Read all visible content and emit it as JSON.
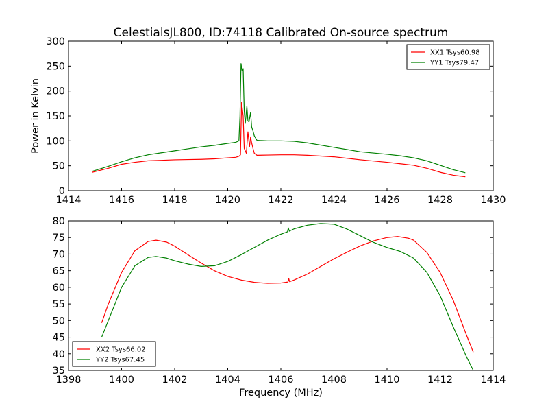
{
  "figure": {
    "title": "CelestialsJL800, ID:74118 Calibrated On-source spectrum",
    "xlabel": "Frequency (MHz)"
  },
  "chart_data": [
    {
      "type": "line",
      "title": "CelestialsJL800, ID:74118 Calibrated On-source spectrum",
      "xlabel": "",
      "ylabel": "Power in Kelvin",
      "xlim": [
        1414,
        1430
      ],
      "ylim": [
        0,
        300
      ],
      "xticks": [
        1414,
        1416,
        1418,
        1420,
        1422,
        1424,
        1426,
        1428,
        1430
      ],
      "yticks": [
        0,
        50,
        100,
        150,
        200,
        250,
        300
      ],
      "grid": false,
      "legend_position": "top-right",
      "series": [
        {
          "name": "XX1 Tsys60.98",
          "color": "#ff0000",
          "x": [
            1414.9,
            1415.5,
            1416.0,
            1416.5,
            1417.0,
            1417.5,
            1418.0,
            1418.5,
            1419.0,
            1419.5,
            1420.0,
            1420.3,
            1420.42,
            1420.48,
            1420.52,
            1420.58,
            1420.62,
            1420.66,
            1420.7,
            1420.76,
            1420.82,
            1420.86,
            1420.9,
            1420.95,
            1421.0,
            1421.1,
            1421.5,
            1422.0,
            1422.5,
            1423.0,
            1424.0,
            1425.0,
            1426.0,
            1426.5,
            1427.0,
            1427.5,
            1428.0,
            1428.5,
            1428.95
          ],
          "y": [
            37,
            45,
            53,
            57,
            60,
            61,
            62,
            62.5,
            63,
            64,
            66,
            67,
            69,
            72,
            178,
            150,
            85,
            80,
            75,
            118,
            88,
            108,
            96,
            85,
            75,
            71,
            71.5,
            72,
            72,
            71,
            68,
            62,
            57,
            54,
            51,
            45,
            37,
            31,
            28
          ]
        },
        {
          "name": "YY1 Tsys79.47",
          "color": "#008000",
          "x": [
            1414.9,
            1415.5,
            1416.0,
            1416.5,
            1417.0,
            1417.5,
            1418.0,
            1418.5,
            1419.0,
            1419.5,
            1420.0,
            1420.3,
            1420.42,
            1420.46,
            1420.5,
            1420.54,
            1420.58,
            1420.62,
            1420.66,
            1420.72,
            1420.76,
            1420.8,
            1420.86,
            1420.9,
            1420.95,
            1421.0,
            1421.1,
            1421.5,
            1422.0,
            1422.5,
            1423.0,
            1424.0,
            1425.0,
            1426.0,
            1426.5,
            1427.0,
            1427.5,
            1428.0,
            1428.5,
            1428.95
          ],
          "y": [
            39,
            49,
            58,
            66,
            72,
            76,
            80,
            84,
            88,
            91,
            95,
            97,
            100,
            150,
            255,
            240,
            245,
            160,
            135,
            170,
            140,
            138,
            157,
            128,
            120,
            110,
            101,
            100,
            100,
            99,
            96,
            87,
            78,
            73,
            70,
            66,
            60,
            51,
            42,
            36
          ]
        }
      ]
    },
    {
      "type": "line",
      "title": "",
      "xlabel": "Frequency (MHz)",
      "ylabel": "",
      "xlim": [
        1398,
        1414
      ],
      "ylim": [
        35,
        80
      ],
      "xticks": [
        1398,
        1400,
        1402,
        1404,
        1406,
        1408,
        1410,
        1412,
        1414
      ],
      "yticks": [
        35,
        40,
        45,
        50,
        55,
        60,
        65,
        70,
        75,
        80
      ],
      "grid": false,
      "legend_position": "bottom-left",
      "series": [
        {
          "name": "XX2 Tsys66.02",
          "color": "#ff0000",
          "x": [
            1399.25,
            1399.5,
            1400.0,
            1400.5,
            1401.0,
            1401.3,
            1401.7,
            1402.0,
            1402.5,
            1403.0,
            1403.5,
            1404.0,
            1404.5,
            1405.0,
            1405.5,
            1406.0,
            1406.27,
            1406.3,
            1406.33,
            1406.5,
            1407.0,
            1407.5,
            1408.0,
            1408.5,
            1409.0,
            1409.5,
            1410.0,
            1410.4,
            1410.8,
            1411.0,
            1411.5,
            1412.0,
            1412.5,
            1413.0,
            1413.25
          ],
          "y": [
            49.3,
            55,
            64.5,
            71,
            73.8,
            74.2,
            73.6,
            72.4,
            69.8,
            67.3,
            65,
            63.3,
            62.2,
            61.5,
            61.2,
            61.3,
            61.6,
            62.6,
            61.7,
            62.2,
            64,
            66.3,
            68.6,
            70.6,
            72.5,
            74,
            75,
            75.3,
            74.8,
            74.2,
            70.5,
            64.5,
            56,
            45.5,
            40.5
          ]
        },
        {
          "name": "YY2 Tsys67.45",
          "color": "#008000",
          "x": [
            1399.25,
            1399.5,
            1400.0,
            1400.5,
            1401.0,
            1401.3,
            1401.7,
            1402.0,
            1402.5,
            1403.0,
            1403.5,
            1404.0,
            1404.5,
            1405.0,
            1405.5,
            1406.0,
            1406.25,
            1406.28,
            1406.32,
            1406.5,
            1407.0,
            1407.5,
            1408.0,
            1408.5,
            1409.0,
            1409.5,
            1410.0,
            1410.5,
            1411.0,
            1411.5,
            1412.0,
            1412.5,
            1413.0,
            1413.25
          ],
          "y": [
            45,
            50,
            60,
            66.5,
            69,
            69.3,
            68.8,
            68,
            67,
            66.3,
            66.5,
            67.8,
            69.8,
            72,
            74.2,
            76,
            76.7,
            77.9,
            76.9,
            77.6,
            78.7,
            79.2,
            79,
            77.5,
            75.5,
            73.5,
            72,
            70.8,
            68.8,
            64.5,
            57.5,
            48,
            39,
            35
          ]
        }
      ]
    }
  ]
}
